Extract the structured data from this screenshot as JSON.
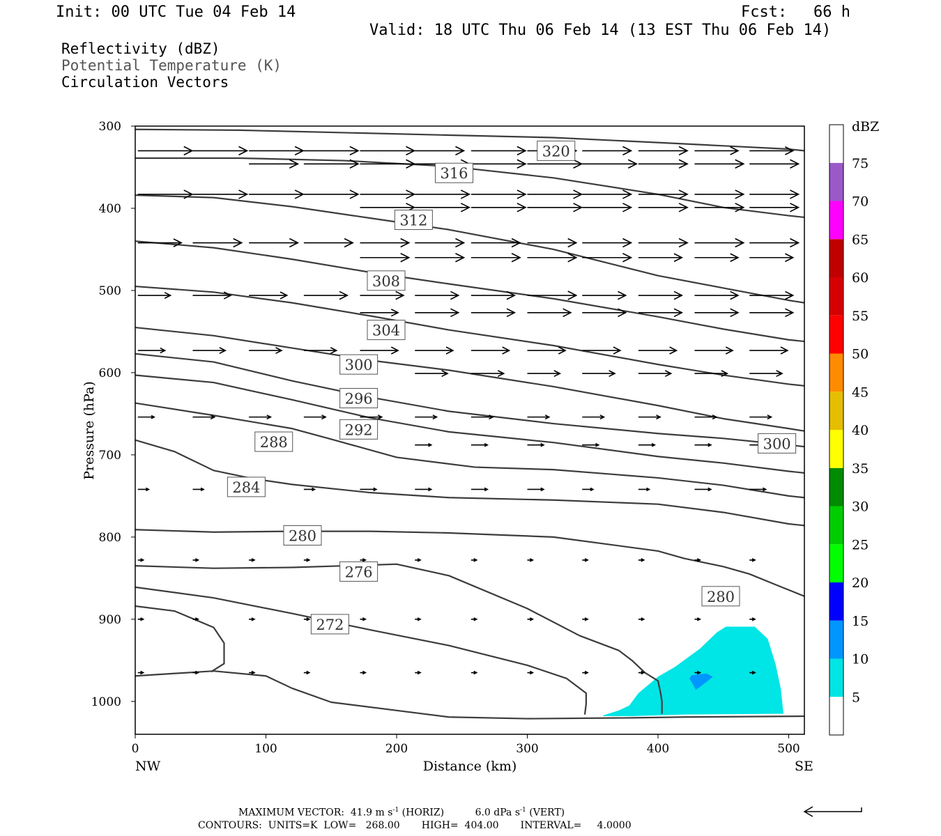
{
  "header": {
    "init": "Init: 00 UTC Tue 04 Feb 14",
    "fcst_label": "Fcst:",
    "fcst_value": "66 h",
    "valid": "Valid: 18 UTC Thu 06 Feb 14 (13 EST Thu 06 Feb 14)"
  },
  "legend_lines": [
    {
      "text": "Reflectivity (dBZ)",
      "color": "#000000"
    },
    {
      "text": "Potential Temperature (K)",
      "color": "#555555"
    },
    {
      "text": "Circulation Vectors",
      "color": "#000000"
    }
  ],
  "chart_data": {
    "type": "cross-section",
    "xlabel": "Distance (km)",
    "ylabel": "Pressure (hPa)",
    "xlim": [
      0,
      512
    ],
    "ylim": [
      1040,
      300
    ],
    "x_ticks": [
      0,
      100,
      200,
      300,
      400,
      500
    ],
    "y_ticks": [
      300,
      400,
      500,
      600,
      700,
      800,
      900,
      1000
    ],
    "x_end_labels": {
      "left": "NW",
      "right": "SE"
    },
    "colorbar": {
      "unit": "dBZ",
      "levels": [
        5,
        10,
        15,
        20,
        25,
        30,
        35,
        40,
        45,
        50,
        55,
        60,
        65,
        70,
        75
      ],
      "colors": [
        "#ffffff",
        "#00e5e5",
        "#0096ff",
        "#0000ff",
        "#00ff00",
        "#00cd00",
        "#008b00",
        "#ffff00",
        "#e6be00",
        "#ff8c00",
        "#ff0000",
        "#d70000",
        "#c00000",
        "#ff00ff",
        "#9b59c8",
        "#ffffff"
      ]
    },
    "reflectivity": [
      {
        "level": 5,
        "color": "#00e5e5",
        "polygon": [
          [
            358,
            1017
          ],
          [
            370,
            1011
          ],
          [
            378,
            1005
          ],
          [
            385,
            990
          ],
          [
            400,
            970
          ],
          [
            413,
            958
          ],
          [
            432,
            936
          ],
          [
            445,
            916
          ],
          [
            452,
            909
          ],
          [
            474,
            909
          ],
          [
            484,
            924
          ],
          [
            490,
            955
          ],
          [
            494,
            985
          ],
          [
            496,
            1015
          ],
          [
            420,
            1016
          ],
          [
            380,
            1018
          ],
          [
            358,
            1018
          ]
        ]
      },
      {
        "level": 10,
        "color": "#0096ff",
        "polygon": [
          [
            426,
            968
          ],
          [
            437,
            966
          ],
          [
            442,
            970
          ],
          [
            434,
            980
          ],
          [
            429,
            986
          ],
          [
            427,
            980
          ],
          [
            424,
            972
          ]
        ]
      }
    ],
    "theta_contours": [
      {
        "label": "320",
        "points": [
          [
            0,
            304
          ],
          [
            80,
            305
          ],
          [
            160,
            308
          ],
          [
            240,
            311
          ],
          [
            320,
            314
          ],
          [
            400,
            320
          ],
          [
            450,
            324
          ],
          [
            500,
            328
          ],
          [
            512,
            330
          ]
        ]
      },
      {
        "label": "316",
        "points": [
          [
            0,
            339
          ],
          [
            80,
            339
          ],
          [
            160,
            342
          ],
          [
            240,
            349
          ],
          [
            320,
            363
          ],
          [
            400,
            383
          ],
          [
            450,
            399
          ],
          [
            500,
            409
          ],
          [
            512,
            411
          ]
        ]
      },
      {
        "label": "312",
        "points": [
          [
            0,
            384
          ],
          [
            60,
            387
          ],
          [
            120,
            398
          ],
          [
            180,
            412
          ],
          [
            240,
            426
          ],
          [
            320,
            450
          ],
          [
            400,
            482
          ],
          [
            450,
            497
          ],
          [
            500,
            512
          ],
          [
            512,
            515
          ]
        ]
      },
      {
        "label": "308",
        "points": [
          [
            0,
            440
          ],
          [
            60,
            448
          ],
          [
            120,
            462
          ],
          [
            180,
            478
          ],
          [
            240,
            492
          ],
          [
            320,
            510
          ],
          [
            400,
            532
          ],
          [
            450,
            547
          ],
          [
            500,
            560
          ],
          [
            512,
            562
          ]
        ]
      },
      {
        "label": "304",
        "points": [
          [
            0,
            495
          ],
          [
            60,
            502
          ],
          [
            120,
            515
          ],
          [
            180,
            531
          ],
          [
            240,
            548
          ],
          [
            320,
            567
          ],
          [
            400,
            590
          ],
          [
            450,
            603
          ],
          [
            500,
            614
          ],
          [
            512,
            616
          ]
        ]
      },
      {
        "label": "300",
        "points": [
          [
            0,
            545
          ],
          [
            60,
            555
          ],
          [
            120,
            570
          ],
          [
            180,
            585
          ],
          [
            240,
            597
          ],
          [
            320,
            617
          ],
          [
            400,
            640
          ],
          [
            450,
            656
          ],
          [
            500,
            668
          ],
          [
            512,
            671
          ]
        ]
      },
      {
        "label": "296",
        "points": [
          [
            0,
            577
          ],
          [
            60,
            587
          ],
          [
            120,
            610
          ],
          [
            180,
            630
          ],
          [
            240,
            647
          ],
          [
            320,
            662
          ],
          [
            400,
            674
          ],
          [
            450,
            680
          ],
          [
            500,
            688
          ],
          [
            512,
            690
          ]
        ]
      },
      {
        "label": "292",
        "points": [
          [
            0,
            603
          ],
          [
            60,
            612
          ],
          [
            120,
            633
          ],
          [
            180,
            655
          ],
          [
            240,
            672
          ],
          [
            320,
            685
          ],
          [
            400,
            702
          ],
          [
            450,
            710
          ],
          [
            500,
            720
          ],
          [
            512,
            722
          ]
        ]
      },
      {
        "label": "288",
        "points": [
          [
            0,
            637
          ],
          [
            60,
            652
          ],
          [
            120,
            668
          ],
          [
            150,
            681
          ],
          [
            200,
            703
          ],
          [
            260,
            715
          ],
          [
            320,
            718
          ],
          [
            400,
            728
          ],
          [
            450,
            737
          ],
          [
            500,
            750
          ],
          [
            512,
            752
          ]
        ]
      },
      {
        "label": "284",
        "points": [
          [
            0,
            682
          ],
          [
            30,
            696
          ],
          [
            60,
            719
          ],
          [
            90,
            729
          ],
          [
            120,
            736
          ],
          [
            180,
            746
          ],
          [
            240,
            752
          ],
          [
            320,
            755
          ],
          [
            400,
            760
          ],
          [
            450,
            770
          ],
          [
            500,
            784
          ],
          [
            512,
            786
          ]
        ]
      },
      {
        "label": "280",
        "points": [
          [
            0,
            791
          ],
          [
            60,
            794
          ],
          [
            120,
            793
          ],
          [
            180,
            793
          ],
          [
            240,
            795
          ],
          [
            320,
            800
          ],
          [
            400,
            817
          ],
          [
            420,
            826
          ],
          [
            450,
            836
          ],
          [
            470,
            845
          ],
          [
            490,
            858
          ],
          [
            512,
            872
          ]
        ]
      },
      {
        "label": "276",
        "points": [
          [
            0,
            835
          ],
          [
            60,
            838
          ],
          [
            120,
            837
          ],
          [
            180,
            834
          ],
          [
            200,
            833
          ],
          [
            240,
            847
          ],
          [
            300,
            887
          ],
          [
            340,
            920
          ],
          [
            370,
            938
          ],
          [
            380,
            950
          ],
          [
            390,
            965
          ],
          [
            400,
            975
          ],
          [
            402,
            990
          ],
          [
            403,
            1000
          ],
          [
            403,
            1015
          ]
        ]
      },
      {
        "label": "272",
        "points": [
          [
            0,
            861
          ],
          [
            60,
            874
          ],
          [
            120,
            893
          ],
          [
            180,
            913
          ],
          [
            240,
            932
          ],
          [
            300,
            956
          ],
          [
            330,
            972
          ],
          [
            345,
            990
          ],
          [
            345,
            1003
          ],
          [
            344,
            1016
          ]
        ]
      },
      {
        "label": "",
        "points": [
          [
            0,
            884
          ],
          [
            30,
            890
          ],
          [
            60,
            910
          ],
          [
            68,
            929
          ],
          [
            68,
            954
          ],
          [
            58,
            964
          ]
        ]
      },
      {
        "label": "",
        "points": [
          [
            0,
            969
          ],
          [
            60,
            963
          ],
          [
            100,
            969
          ],
          [
            120,
            984
          ],
          [
            150,
            1001
          ],
          [
            200,
            1011
          ],
          [
            240,
            1019
          ],
          [
            300,
            1021
          ],
          [
            380,
            1020
          ],
          [
            420,
            1019
          ],
          [
            512,
            1018
          ]
        ]
      }
    ],
    "contour_label_positions": [
      {
        "label": "320",
        "x": 322,
        "p": 330
      },
      {
        "label": "316",
        "x": 244,
        "p": 357
      },
      {
        "label": "312",
        "x": 213,
        "p": 414
      },
      {
        "label": "308",
        "x": 192,
        "p": 488
      },
      {
        "label": "304",
        "x": 192,
        "p": 548
      },
      {
        "label": "300",
        "x": 171,
        "p": 590
      },
      {
        "label": "296",
        "x": 171,
        "p": 631
      },
      {
        "label": "292",
        "x": 171,
        "p": 669
      },
      {
        "label": "288",
        "x": 106,
        "p": 684
      },
      {
        "label": "284",
        "x": 85,
        "p": 739
      },
      {
        "label": "280",
        "x": 128,
        "p": 798
      },
      {
        "label": "276",
        "x": 171,
        "p": 842
      },
      {
        "label": "272",
        "x": 149,
        "p": 906
      },
      {
        "label": "300",
        "x": 491,
        "p": 686
      },
      {
        "label": "280",
        "x": 448,
        "p": 872
      }
    ],
    "vectors": [
      {
        "p": 330,
        "u": [
          1.0,
          1.0,
          1.0,
          1.0,
          1.0,
          0.9,
          1.0,
          0.9,
          0.9,
          0.9,
          0.8,
          0.8
        ]
      },
      {
        "p": 346,
        "u": [
          0.0,
          0.0,
          0.9,
          1.0,
          1.0,
          1.0,
          1.0,
          1.0,
          1.0,
          0.9,
          0.9,
          0.9
        ]
      },
      {
        "p": 383,
        "u": [
          1.0,
          1.0,
          1.0,
          1.0,
          1.0,
          1.0,
          1.0,
          1.0,
          0.9,
          0.9,
          0.9,
          0.9
        ]
      },
      {
        "p": 399,
        "u": [
          0.0,
          0.0,
          0.0,
          0.0,
          1.0,
          1.0,
          1.0,
          1.0,
          0.9,
          0.9,
          0.9,
          0.9
        ]
      },
      {
        "p": 442,
        "u": [
          0.8,
          0.9,
          0.9,
          0.9,
          0.9,
          0.9,
          0.9,
          0.9,
          0.9,
          0.9,
          0.9,
          0.9
        ]
      },
      {
        "p": 460,
        "u": [
          0.0,
          0.0,
          0.0,
          0.0,
          0.9,
          0.9,
          0.9,
          0.9,
          0.9,
          0.8,
          0.8,
          0.8
        ]
      },
      {
        "p": 506,
        "u": [
          0.6,
          0.7,
          0.7,
          0.8,
          0.8,
          0.8,
          0.8,
          0.9,
          0.8,
          0.8,
          0.8,
          0.8
        ]
      },
      {
        "p": 527,
        "u": [
          0.0,
          0.0,
          0.0,
          0.0,
          0.7,
          0.8,
          0.8,
          0.8,
          0.8,
          0.8,
          0.8,
          0.8
        ]
      },
      {
        "p": 573,
        "u": [
          0.5,
          0.6,
          0.6,
          0.6,
          0.7,
          0.7,
          0.7,
          0.7,
          0.7,
          0.7,
          0.7,
          0.7
        ]
      },
      {
        "p": 601,
        "u": [
          0.0,
          0.0,
          0.0,
          0.0,
          0.0,
          0.6,
          0.6,
          0.6,
          0.6,
          0.6,
          0.6,
          0.6
        ]
      },
      {
        "p": 654,
        "u": [
          0.3,
          0.4,
          0.4,
          0.4,
          0.4,
          0.4,
          0.4,
          0.4,
          0.4,
          0.4,
          0.4,
          0.4
        ]
      },
      {
        "p": 688,
        "u": [
          0.0,
          0.0,
          0.0,
          0.0,
          0.0,
          0.3,
          0.3,
          0.3,
          0.3,
          0.3,
          0.3,
          0.3
        ]
      },
      {
        "p": 742,
        "u": [
          0.2,
          0.2,
          0.2,
          0.2,
          0.3,
          0.3,
          0.3,
          0.3,
          0.2,
          0.2,
          0.3,
          0.3
        ]
      },
      {
        "p": 777,
        "u": [
          0.0,
          0.0,
          0.0,
          0.0,
          0.0,
          0.0,
          0.0,
          0.0,
          0.0,
          0.0,
          0.0,
          0.0
        ]
      },
      {
        "p": 828,
        "u": [
          0.1,
          0.1,
          0.1,
          0.1,
          0.1,
          0.1,
          0.1,
          0.1,
          0.1,
          0.1,
          0.1,
          0.1
        ]
      },
      {
        "p": 863,
        "u": [
          0.0,
          0.0,
          0.0,
          0.0,
          0.0,
          0.0,
          0.0,
          0.0,
          0.0,
          0.0,
          0.0,
          0.0
        ]
      },
      {
        "p": 900,
        "u": [
          0.1,
          0.1,
          0.1,
          0.1,
          0.1,
          0.1,
          0.1,
          0.1,
          0.1,
          0.1,
          0.1,
          0.1
        ]
      },
      {
        "p": 945,
        "u": [
          0.0,
          0.0,
          0.0,
          0.0,
          0.0,
          0.0,
          0.0,
          0.0,
          0.0,
          0.0,
          0.0,
          0.0
        ]
      },
      {
        "p": 965,
        "u": [
          0.1,
          0.1,
          0.1,
          0.1,
          0.1,
          0.1,
          0.1,
          0.1,
          0.1,
          0.1,
          0.1,
          0.1
        ]
      },
      {
        "p": 1012,
        "u": [
          0.0,
          0.0,
          0.0,
          0.0,
          0.0,
          0.0,
          0.0,
          0.0,
          0.0,
          0.0,
          0.0,
          0.0
        ]
      }
    ]
  },
  "footer": {
    "max_vector": "MAXIMUM VECTOR:  41.9 m s",
    "max_vector_mid": " (HORIZ)          6.0 dPa s",
    "max_vector_end": " (VERT)",
    "sup": "-1",
    "contours": "CONTOURS:  UNITS=K  LOW=   268.00       HIGH=  404.00       INTERVAL=     4.0000"
  }
}
